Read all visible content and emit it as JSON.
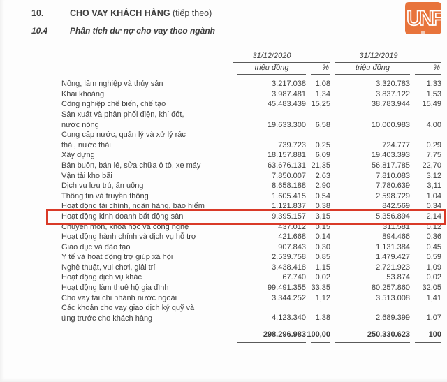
{
  "document": {
    "section_number": "10.",
    "section_title": "CHO VAY KHÁCH HÀNG",
    "section_suffix": " (tiếp theo)",
    "subsection_number": "10.4",
    "subsection_title": "Phân tích dư nợ cho vay theo ngành",
    "logo_text": "UNF"
  },
  "colors": {
    "highlight_red": "#d93a28",
    "logo_orange": "#e8743c",
    "text": "#3e3e3e",
    "rule": "#5a5a5a"
  },
  "table": {
    "period_headers": [
      "31/12/2020",
      "31/12/2019"
    ],
    "unit_headers": [
      "triệu đồng",
      "%",
      "triệu đồng",
      "%"
    ],
    "rows": [
      {
        "label": "Nông, lâm nghiệp và thủy sản",
        "v2020": "3.217.038",
        "p2020": "1,08",
        "v2019": "3.320.783",
        "p2019": "1,33",
        "highlight": false
      },
      {
        "label": "Khai khoáng",
        "v2020": "3.987.481",
        "p2020": "1,34",
        "v2019": "3.837.122",
        "p2019": "1,53",
        "highlight": false
      },
      {
        "label": "Công nghiệp chế biến, chế tạo",
        "v2020": "45.483.439",
        "p2020": "15,25",
        "v2019": "38.783.944",
        "p2019": "15,49",
        "highlight": false
      },
      {
        "label": "Sản xuất và phân phối điện, khí đốt,\nnước nóng",
        "v2020": "19.633.300",
        "p2020": "6,58",
        "v2019": "10.000.983",
        "p2019": "4,00",
        "highlight": false
      },
      {
        "label": "Cung cấp nước, quản lý và xử lý rác\nthải, nước thải",
        "v2020": "739.723",
        "p2020": "0,25",
        "v2019": "724.777",
        "p2019": "0,29",
        "highlight": false
      },
      {
        "label": "Xây dựng",
        "v2020": "18.157.881",
        "p2020": "6,09",
        "v2019": "19.403.393",
        "p2019": "7,75",
        "highlight": false
      },
      {
        "label": "Bán buôn, bán lẻ, sửa chữa ô tô, xe máy",
        "v2020": "63.676.131",
        "p2020": "21,35",
        "v2019": "56.817.785",
        "p2019": "22,70",
        "highlight": false
      },
      {
        "label": "Vận tải kho bãi",
        "v2020": "7.850.007",
        "p2020": "2,63",
        "v2019": "7.810.083",
        "p2019": "3,12",
        "highlight": false
      },
      {
        "label": "Dịch vụ lưu trú, ăn uống",
        "v2020": "8.658.188",
        "p2020": "2,90",
        "v2019": "7.780.639",
        "p2019": "3,11",
        "highlight": false
      },
      {
        "label": "Thông tin và truyền thông",
        "v2020": "1.605.415",
        "p2020": "0,54",
        "v2019": "2.598.729",
        "p2019": "1,04",
        "highlight": false
      },
      {
        "label": "Hoạt động tài chính, ngân hàng, bảo hiểm",
        "v2020": "1.121.837",
        "p2020": "0,38",
        "v2019": "842.569",
        "p2019": "0,34",
        "highlight": false
      },
      {
        "label": "Hoạt động kinh doanh bất động sản",
        "v2020": "9.395.157",
        "p2020": "3,15",
        "v2019": "5.356.894",
        "p2019": "2,14",
        "highlight": true
      },
      {
        "label": "Chuyên môn, khoa học và công nghệ",
        "v2020": "437.012",
        "p2020": "0,15",
        "v2019": "311.581",
        "p2019": "0,12",
        "highlight": false
      },
      {
        "label": "Hoạt động hành chính và dịch vụ hỗ trợ",
        "v2020": "421.668",
        "p2020": "0,14",
        "v2019": "894.466",
        "p2019": "0,36",
        "highlight": false
      },
      {
        "label": "Giáo dục và đào tạo",
        "v2020": "907.843",
        "p2020": "0,30",
        "v2019": "1.131.384",
        "p2019": "0,45",
        "highlight": false
      },
      {
        "label": "Y tế và hoạt động trợ giúp xã hội",
        "v2020": "2.539.758",
        "p2020": "0,85",
        "v2019": "1.479.427",
        "p2019": "0,59",
        "highlight": false
      },
      {
        "label": "Nghệ thuật, vui chơi, giải trí",
        "v2020": "3.438.418",
        "p2020": "1,15",
        "v2019": "2.721.923",
        "p2019": "1,09",
        "highlight": false
      },
      {
        "label": "Hoạt động dịch vụ khác",
        "v2020": "67.740",
        "p2020": "0,02",
        "v2019": "53.874",
        "p2019": "0,02",
        "highlight": false
      },
      {
        "label": "Hoạt động làm thuê hộ gia đình",
        "v2020": "99.491.355",
        "p2020": "33,35",
        "v2019": "80.257.860",
        "p2019": "32,05",
        "highlight": false
      },
      {
        "label": "Cho vay tại chi nhánh nước ngoài",
        "v2020": "3.344.252",
        "p2020": "1,12",
        "v2019": "3.513.008",
        "p2019": "1,41",
        "highlight": false
      },
      {
        "label": "Các khoản cho vay giao dịch ký quỹ và\nứng trước cho khách hàng",
        "v2020": "4.123.340",
        "p2020": "1,38",
        "v2019": "2.689.399",
        "p2019": "1,07",
        "highlight": false
      }
    ],
    "total": {
      "v2020": "298.296.983",
      "p2020": "100,00",
      "v2019": "250.330.623",
      "p2019": "100"
    }
  }
}
